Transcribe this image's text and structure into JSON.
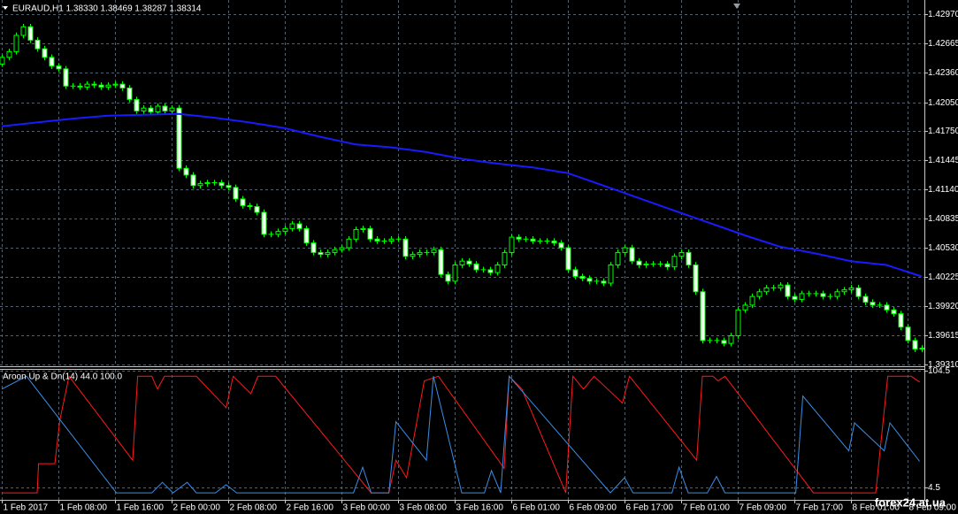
{
  "watermark": "forex24.at.ua",
  "chart_data": [
    {
      "type": "candlestick",
      "title": "EURAUD,H1  1.38330 1.38469 1.38287 1.38314",
      "up_color": "#000000",
      "down_color": "#ffffff",
      "wick_color": "#00ff00",
      "xlim": [
        -0.25,
        130.375
      ],
      "ylim": [
        1.393,
        1.4312
      ],
      "yticks": [
        {
          "value": 1.4297,
          "label": "1.42970"
        },
        1.42665,
        {
          "value": 1.4236,
          "label": "1.42360"
        },
        {
          "value": 1.4205,
          "label": "1.42050"
        },
        {
          "value": 1.4175,
          "label": "1.41750"
        },
        1.41445,
        {
          "value": 1.4114,
          "label": "1.41140"
        },
        1.40835,
        {
          "value": 1.4053,
          "label": "1.40530"
        },
        1.40225,
        {
          "value": 1.3992,
          "label": "1.39920"
        },
        1.39615,
        {
          "value": 1.3931,
          "label": "1.39310"
        }
      ],
      "grid": true,
      "open": [
        1.4245,
        1.4252,
        1.4258,
        1.4275,
        1.4284,
        1.427,
        1.4261,
        1.4252,
        1.4243,
        1.424,
        1.4222,
        1.4222,
        1.4221,
        1.4224,
        1.4223,
        1.4221,
        1.4223,
        1.4224,
        1.422,
        1.4208,
        1.4196,
        1.4199,
        1.4195,
        1.4201,
        1.4196,
        1.4199,
        1.4136,
        1.4129,
        1.4118,
        1.412,
        1.4121,
        1.4121,
        1.4118,
        1.4116,
        1.4104,
        1.4097,
        1.4096,
        1.409,
        1.4067,
        1.4067,
        1.407,
        1.4073,
        1.4078,
        1.4073,
        1.4058,
        1.4048,
        1.4046,
        1.4048,
        1.4051,
        1.4053,
        1.4062,
        1.4072,
        1.4073,
        1.4062,
        1.406,
        1.406,
        1.4062,
        1.4062,
        1.4044,
        1.4046,
        1.4048,
        1.4048,
        1.4051,
        1.4025,
        1.4018,
        1.4035,
        1.4039,
        1.4036,
        1.403,
        1.403,
        1.4027,
        1.4035,
        1.4048,
        1.4064,
        1.4062,
        1.4062,
        1.406,
        1.406,
        1.406,
        1.4058,
        1.4053,
        1.403,
        1.4023,
        1.4021,
        1.4018,
        1.4018,
        1.4016,
        1.4035,
        1.4048,
        1.4053,
        1.4039,
        1.4035,
        1.4036,
        1.4036,
        1.4036,
        1.4033,
        1.4044,
        1.4048,
        1.4035,
        1.4007,
        1.3956,
        1.3956,
        1.3956,
        1.3953,
        1.3961,
        1.3988,
        1.3993,
        1.4002,
        1.4007,
        1.4011,
        1.4011,
        1.4014,
        1.4002,
        1.3999,
        1.4005,
        1.4005,
        1.4005,
        1.4002,
        1.4002,
        1.4007,
        1.4009,
        1.4011,
        1.4002,
        1.3996,
        1.3993,
        1.3993,
        1.3988,
        1.3984,
        1.397,
        1.3956,
        1.3947
      ],
      "high": [
        1.4255,
        1.4261,
        1.4278,
        1.4287,
        1.4287,
        1.4273,
        1.4264,
        1.4255,
        1.4246,
        1.4243,
        1.4225,
        1.4225,
        1.4227,
        1.4227,
        1.4226,
        1.4226,
        1.4227,
        1.4227,
        1.4223,
        1.4211,
        1.4202,
        1.4202,
        1.4204,
        1.4204,
        1.4202,
        1.4202,
        1.4139,
        1.4132,
        1.4123,
        1.4124,
        1.4124,
        1.4124,
        1.4121,
        1.4119,
        1.4107,
        1.41,
        1.4099,
        1.4093,
        1.407,
        1.4073,
        1.4076,
        1.4081,
        1.4081,
        1.4076,
        1.4061,
        1.4051,
        1.4051,
        1.4054,
        1.4056,
        1.4065,
        1.4075,
        1.4076,
        1.4076,
        1.4065,
        1.4063,
        1.4065,
        1.4065,
        1.4065,
        1.4049,
        1.4051,
        1.4051,
        1.4054,
        1.4054,
        1.4028,
        1.4038,
        1.4042,
        1.4042,
        1.4039,
        1.4033,
        1.4033,
        1.4038,
        1.4051,
        1.4067,
        1.4067,
        1.4065,
        1.4065,
        1.4063,
        1.4063,
        1.4063,
        1.4061,
        1.4056,
        1.4033,
        1.4026,
        1.4024,
        1.4021,
        1.4021,
        1.4038,
        1.4051,
        1.4056,
        1.4056,
        1.4042,
        1.4039,
        1.4039,
        1.4039,
        1.4039,
        1.4047,
        1.4051,
        1.4051,
        1.4038,
        1.401,
        1.3959,
        1.3959,
        1.3959,
        1.3964,
        1.3991,
        1.3996,
        1.4005,
        1.401,
        1.4014,
        1.4014,
        1.4017,
        1.4017,
        1.4005,
        1.4008,
        1.4008,
        1.4008,
        1.4008,
        1.4005,
        1.401,
        1.4012,
        1.4014,
        1.4014,
        1.4005,
        1.3999,
        1.3996,
        1.3996,
        1.3991,
        1.3987,
        1.3973,
        1.3959,
        1.3951
      ],
      "low": [
        1.4242,
        1.4249,
        1.4255,
        1.4272,
        1.4267,
        1.4258,
        1.4249,
        1.424,
        1.4237,
        1.4219,
        1.4219,
        1.4218,
        1.4218,
        1.422,
        1.4218,
        1.4218,
        1.422,
        1.4217,
        1.4205,
        1.4193,
        1.4193,
        1.4192,
        1.4192,
        1.4193,
        1.4193,
        1.4133,
        1.4126,
        1.4115,
        1.4115,
        1.4117,
        1.4118,
        1.4115,
        1.4113,
        1.4101,
        1.4094,
        1.4093,
        1.4087,
        1.4064,
        1.4064,
        1.4064,
        1.4067,
        1.407,
        1.407,
        1.4055,
        1.4045,
        1.4043,
        1.4043,
        1.4045,
        1.4048,
        1.405,
        1.4059,
        1.4069,
        1.4059,
        1.4057,
        1.4057,
        1.4057,
        1.4059,
        1.4041,
        1.4041,
        1.4043,
        1.4045,
        1.4045,
        1.4022,
        1.4015,
        1.4015,
        1.4032,
        1.4033,
        1.4027,
        1.4027,
        1.4024,
        1.4024,
        1.4032,
        1.4045,
        1.4059,
        1.4059,
        1.4057,
        1.4057,
        1.4057,
        1.4055,
        1.405,
        1.4027,
        1.402,
        1.4018,
        1.4015,
        1.4015,
        1.4013,
        1.4013,
        1.4032,
        1.4045,
        1.4036,
        1.4032,
        1.4032,
        1.4033,
        1.4033,
        1.403,
        1.403,
        1.4041,
        1.4032,
        1.4004,
        1.3953,
        1.3953,
        1.3953,
        1.395,
        1.395,
        1.3958,
        1.3985,
        1.399,
        1.3999,
        1.4004,
        1.4008,
        1.4008,
        1.3999,
        1.3996,
        1.3996,
        1.4002,
        1.4002,
        1.3999,
        1.3999,
        1.3999,
        1.4004,
        1.4006,
        1.3999,
        1.3993,
        1.399,
        1.399,
        1.3985,
        1.3981,
        1.3967,
        1.3953,
        1.3944,
        1.3944
      ],
      "close": [
        1.4252,
        1.4258,
        1.4275,
        1.4284,
        1.427,
        1.4261,
        1.4252,
        1.4243,
        1.424,
        1.4222,
        1.4222,
        1.4221,
        1.4224,
        1.4223,
        1.4221,
        1.4223,
        1.4224,
        1.422,
        1.4208,
        1.4196,
        1.4199,
        1.4195,
        1.4201,
        1.4196,
        1.4199,
        1.4136,
        1.4129,
        1.4118,
        1.412,
        1.4121,
        1.4121,
        1.4118,
        1.4116,
        1.4104,
        1.4097,
        1.4096,
        1.409,
        1.4067,
        1.4067,
        1.407,
        1.4073,
        1.4078,
        1.4073,
        1.4058,
        1.4048,
        1.4046,
        1.4048,
        1.4051,
        1.4053,
        1.4062,
        1.4072,
        1.4073,
        1.4062,
        1.406,
        1.406,
        1.4062,
        1.4062,
        1.4044,
        1.4046,
        1.4048,
        1.4048,
        1.4051,
        1.4025,
        1.4018,
        1.4035,
        1.4039,
        1.4036,
        1.403,
        1.403,
        1.4027,
        1.4035,
        1.4048,
        1.4064,
        1.4062,
        1.4062,
        1.406,
        1.406,
        1.406,
        1.4058,
        1.4053,
        1.403,
        1.4023,
        1.4021,
        1.4018,
        1.4018,
        1.4016,
        1.4035,
        1.4048,
        1.4053,
        1.4039,
        1.4035,
        1.4036,
        1.4036,
        1.4036,
        1.4033,
        1.4044,
        1.4048,
        1.4035,
        1.4007,
        1.3956,
        1.3956,
        1.3956,
        1.3953,
        1.3961,
        1.3988,
        1.3993,
        1.4002,
        1.4007,
        1.4011,
        1.4011,
        1.4014,
        1.4002,
        1.3999,
        1.4005,
        1.4005,
        1.4005,
        1.4002,
        1.4002,
        1.4007,
        1.4009,
        1.4011,
        1.4002,
        1.3996,
        1.3993,
        1.3993,
        1.3988,
        1.3984,
        1.397,
        1.3956,
        1.3947,
        1.3948
      ],
      "series": [
        {
          "color": "#1a1aff",
          "x": [
            0,
            5,
            10,
            15,
            20,
            25,
            30,
            35,
            40,
            45,
            50,
            55,
            60,
            65,
            70,
            75,
            80,
            85,
            90,
            95,
            100,
            105,
            110,
            115,
            120,
            125,
            130
          ],
          "values": [
            1.418,
            1.4184,
            1.4188,
            1.4191,
            1.4192,
            1.4193,
            1.4189,
            1.4184,
            1.4178,
            1.4169,
            1.4161,
            1.4158,
            1.4153,
            1.4146,
            1.4141,
            1.4137,
            1.4131,
            1.4118,
            1.4105,
            1.4092,
            1.4079,
            1.4066,
            1.4054,
            1.4047,
            1.4039,
            1.4035,
            1.4023
          ]
        }
      ]
    },
    {
      "type": "line",
      "title": "Aroon Up & Dn(14) 44.0 100.0",
      "xlim": [
        -0.25,
        130.375
      ],
      "ylim": [
        -6,
        105.5
      ],
      "yticks": [
        104.5,
        4.5
      ],
      "xticks": [
        {
          "value": 0,
          "label": "1 Feb 2017"
        },
        {
          "value": 8,
          "label": "1 Feb 08:00"
        },
        {
          "value": 16,
          "label": "1 Feb 16:00"
        },
        {
          "value": 24,
          "label": "2 Feb 00:00"
        },
        {
          "value": 32,
          "label": "2 Feb 08:00"
        },
        {
          "value": 40,
          "label": "2 Feb 16:00"
        },
        {
          "value": 48,
          "label": "3 Feb 00:00"
        },
        {
          "value": 56,
          "label": "3 Feb 08:00"
        },
        {
          "value": 64,
          "label": "3 Feb 16:00"
        },
        {
          "value": 72,
          "label": "6 Feb 01:00"
        },
        {
          "value": 80,
          "label": "6 Feb 09:00"
        },
        {
          "value": 88,
          "label": "6 Feb 17:00"
        },
        {
          "value": 96,
          "label": "7 Feb 01:00"
        },
        {
          "value": 104,
          "label": "7 Feb 09:00"
        },
        {
          "value": 112,
          "label": "7 Feb 17:00"
        },
        {
          "value": 120,
          "label": "8 Feb 01:00"
        },
        {
          "value": 128,
          "label": "8 Feb 09:00"
        }
      ],
      "grid": true,
      "series": [
        {
          "color": "#ff1a1a",
          "x": [
            0,
            5,
            5.2,
            7.5,
            8.2,
            9.5,
            18.5,
            19.2,
            21.2,
            22,
            23,
            27.5,
            31.7,
            32.7,
            35.2,
            36.2,
            38.7,
            52.2,
            54.7,
            55.7,
            57.2,
            59.7,
            61.7,
            71,
            71.7,
            73.5,
            79.7,
            80.7,
            82.2,
            83.7,
            87.7,
            88.7,
            98.2,
            99,
            100.5,
            101.2,
            102.2,
            114.7,
            123.5,
            125.2,
            128.5,
            129.7
          ],
          "values": [
            0,
            0,
            25,
            25,
            62,
            100,
            28,
            100,
            100,
            89,
            100,
            100,
            73,
            100,
            85,
            100,
            100,
            0,
            0,
            28,
            13,
            96,
            100,
            21,
            100,
            89,
            0,
            100,
            89,
            100,
            77,
            100,
            28,
            100,
            100,
            96,
            100,
            0,
            0,
            100,
            100,
            95
          ]
        },
        {
          "color": "#3a8ee6",
          "x": [
            0,
            3.5,
            16.2,
            21.2,
            22.7,
            24.2,
            26.2,
            27.5,
            30.2,
            31.7,
            33.2,
            49.7,
            51,
            52.2,
            54.7,
            55.7,
            60,
            61,
            65,
            68.2,
            69.2,
            70.5,
            71.7,
            86,
            88,
            89.2,
            94.7,
            95.7,
            97,
            99.7,
            101,
            102.2,
            112.2,
            113.2,
            119.7,
            120.5,
            124.7,
            125.5,
            129.7
          ],
          "values": [
            89,
            100,
            0,
            0,
            9,
            0,
            9,
            0,
            0,
            7,
            0,
            0,
            22,
            0,
            0,
            61,
            28,
            100,
            0,
            0,
            19,
            0,
            100,
            0,
            13,
            0,
            0,
            22,
            0,
            0,
            14,
            0,
            0,
            83,
            36,
            60,
            36,
            60,
            27
          ]
        }
      ]
    }
  ]
}
